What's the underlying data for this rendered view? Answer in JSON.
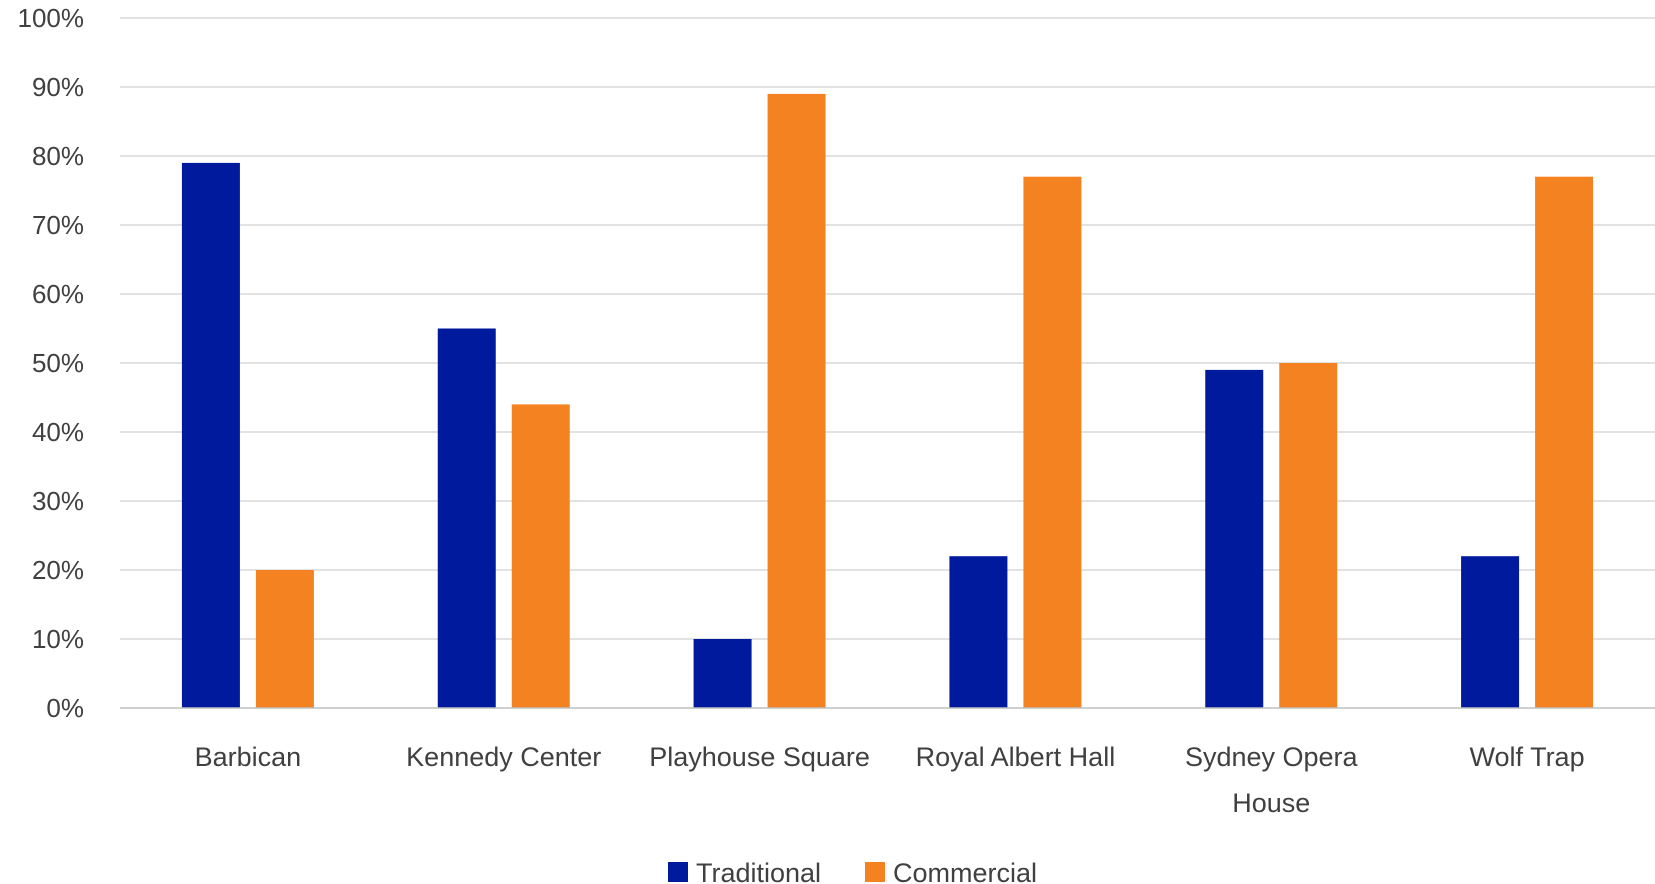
{
  "chart_data": {
    "type": "bar",
    "categories": [
      [
        "Barbican"
      ],
      [
        "Kennedy Center"
      ],
      [
        "Playhouse Square"
      ],
      [
        "Royal Albert Hall"
      ],
      [
        "Sydney Opera",
        "House"
      ],
      [
        "Wolf Trap"
      ]
    ],
    "series": [
      {
        "name": "Traditional",
        "color": "#001a9e",
        "values": [
          79,
          55,
          10,
          22,
          49,
          22
        ]
      },
      {
        "name": "Commercial",
        "color": "#f58220",
        "values": [
          20,
          44,
          89,
          77,
          50,
          77
        ]
      }
    ],
    "ylim": [
      0,
      100
    ],
    "yticks": [
      "0%",
      "10%",
      "20%",
      "30%",
      "40%",
      "50%",
      "60%",
      "70%",
      "80%",
      "90%",
      "100%"
    ],
    "grid": true,
    "legend_position": "bottom-center"
  }
}
